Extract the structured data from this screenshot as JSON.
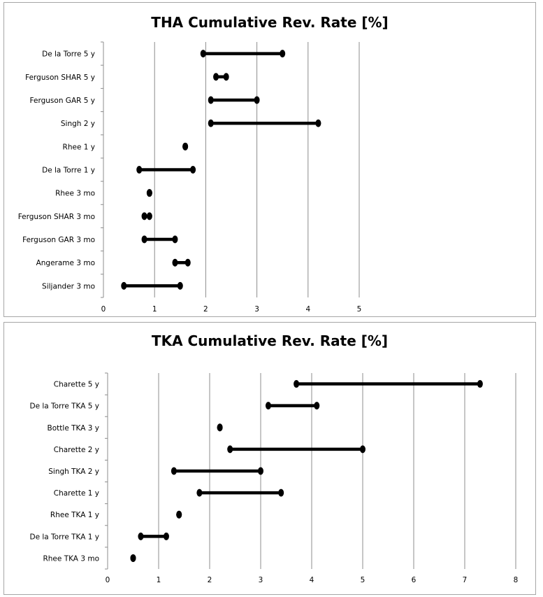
{
  "chart_data": [
    {
      "type": "dumbbell",
      "title": "THA Cumulative Rev. Rate [%]",
      "xlabel": "",
      "ylabel": "",
      "xlim": [
        0,
        5
      ],
      "xticks": [
        0,
        1,
        2,
        3,
        4,
        5
      ],
      "grid": true,
      "categories": [
        "De la Torre 5 y",
        "Ferguson SHAR 5 y",
        "Ferguson GAR 5 y",
        "Singh 2 y",
        "Rhee 1 y",
        "De la Torre 1 y",
        "Rhee 3 mo",
        "Ferguson SHAR 3 mo",
        "Ferguson GAR 3 mo",
        "Angerame 3 mo",
        "Siljander 3 mo"
      ],
      "ranges": [
        [
          1.95,
          3.5
        ],
        [
          2.2,
          2.4
        ],
        [
          2.1,
          3.0
        ],
        [
          2.1,
          4.2
        ],
        [
          1.6,
          1.6
        ],
        [
          0.7,
          1.75
        ],
        [
          0.9,
          0.9
        ],
        [
          0.8,
          0.9
        ],
        [
          0.8,
          1.4
        ],
        [
          1.4,
          1.65
        ],
        [
          0.4,
          1.5
        ]
      ]
    },
    {
      "type": "dumbbell",
      "title": "TKA Cumulative Rev. Rate [%]",
      "xlabel": "",
      "ylabel": "",
      "xlim": [
        0,
        8
      ],
      "xticks": [
        0,
        1,
        2,
        3,
        4,
        5,
        6,
        7,
        8
      ],
      "grid": true,
      "categories": [
        "Charette 5 y",
        "De la Torre TKA 5 y",
        "Bottle TKA 3 y",
        "Charette 2 y",
        "Singh TKA 2 y",
        "Charette 1 y",
        "Rhee TKA 1 y",
        "De la Torre TKA 1 y",
        "Rhee TKA 3 mo"
      ],
      "ranges": [
        [
          3.7,
          7.3
        ],
        [
          3.15,
          4.1
        ],
        [
          2.2,
          2.2
        ],
        [
          2.4,
          5.0
        ],
        [
          1.3,
          3.0
        ],
        [
          1.8,
          3.4
        ],
        [
          1.4,
          1.4
        ],
        [
          0.65,
          1.15
        ],
        [
          0.5,
          0.5
        ]
      ]
    }
  ]
}
